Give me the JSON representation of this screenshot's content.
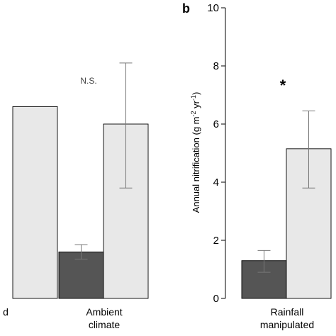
{
  "colors": {
    "dark_bar": "#555555",
    "light_bar": "#e8e8e8",
    "stroke": "#000000",
    "error": "#777777"
  },
  "chart_data": [
    {
      "panel": "",
      "type": "bar",
      "categories": [
        "d",
        "Ambient climate"
      ],
      "category_lines": [
        [
          "d"
        ],
        [
          "Ambient",
          "climate"
        ]
      ],
      "series": [
        {
          "values": [
            null,
            1.6
          ],
          "err_low": [
            null,
            1.35
          ],
          "err_high": [
            null,
            1.85
          ]
        },
        {
          "values": [
            6.6,
            6.0
          ],
          "err_low": [
            null,
            3.8
          ],
          "err_high": [
            null,
            8.1
          ]
        }
      ],
      "annotations": [
        "",
        "N.S."
      ],
      "ylim": [
        0,
        10
      ]
    },
    {
      "panel": "b",
      "type": "bar",
      "categories": [
        "Rainfall manipulated"
      ],
      "category_lines": [
        [
          "Rainfall",
          "manipulated"
        ]
      ],
      "series": [
        {
          "values": [
            1.3
          ],
          "err_low": [
            0.9
          ],
          "err_high": [
            1.65
          ]
        },
        {
          "values": [
            5.15
          ],
          "err_low": [
            3.8
          ],
          "err_high": [
            6.45
          ]
        }
      ],
      "annotations": [
        "*"
      ],
      "ylabel_main": "Annual nitrification (g m",
      "ylabel_sup1": "-2",
      "ylabel_mid": " yr",
      "ylabel_sup2": "-1",
      "ylabel_end": ")",
      "ylim": [
        0,
        10
      ],
      "yticks": [
        "0",
        "2",
        "4",
        "6",
        "8",
        "10"
      ]
    }
  ]
}
